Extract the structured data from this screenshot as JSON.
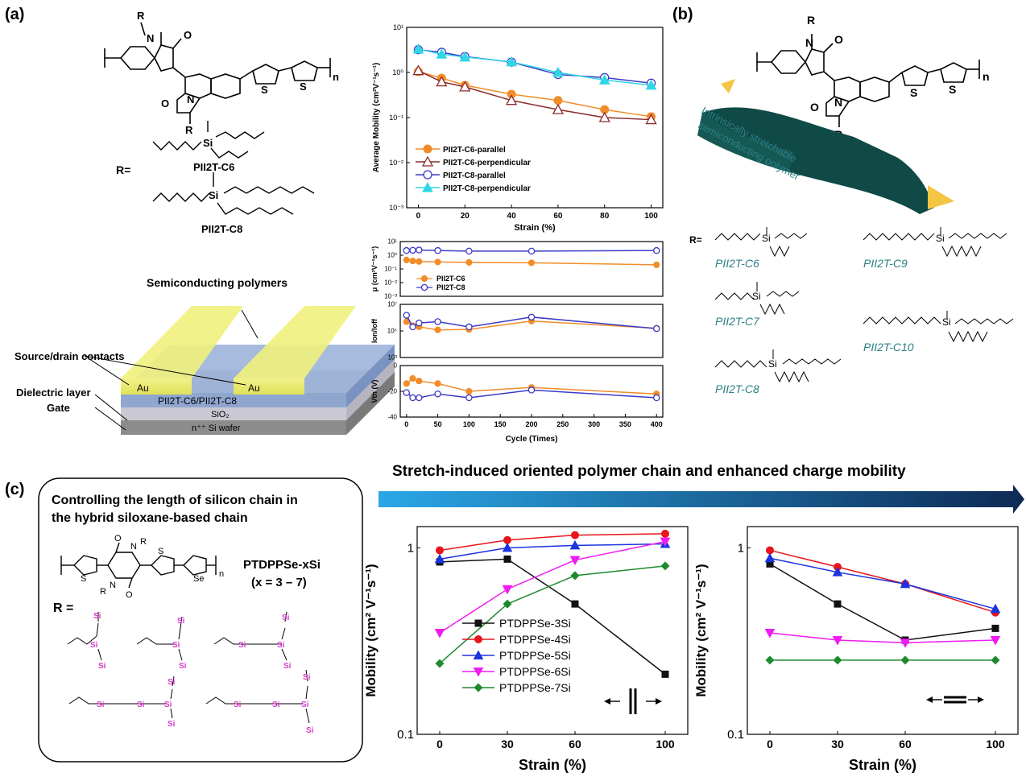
{
  "panels": {
    "a": "(a)",
    "b": "(b)",
    "c": "(c)"
  },
  "panel_a": {
    "chem": {
      "R": "R",
      "O": "O",
      "N": "N",
      "S": "S",
      "n": "n",
      "Si": "Si",
      "R_eq": "R=",
      "name1": "PII2T-C6",
      "name2": "PII2T-C8"
    },
    "device": {
      "semiconducting_label": "Semiconducting polymers",
      "source_drain_label": "Source/drain contacts",
      "dielectric_label": "Dielectric layer",
      "gate_label": "Gate",
      "au": "Au",
      "polymer_layer": "PII2T-C6/PII2T-C8",
      "sio2": "SiO₂",
      "wafer": "n⁺⁺ Si wafer"
    },
    "colors": {
      "wafer": "#8c8c8c",
      "sio2": "#c9c9d3",
      "polymer": "#8fa6cf",
      "au": "#e8e870"
    }
  },
  "panel_b": {
    "chem": {
      "R": "R",
      "O": "O",
      "N": "N",
      "S": "S",
      "n": "n",
      "Si": "Si",
      "R_eq": "R="
    },
    "film_label": "Intrinsically stretchable semiconducting polymer",
    "film_lines": [
      "Intrinsically stretchable",
      "semiconducting polymer"
    ],
    "names": [
      "PII2T-C6",
      "PII2T-C7",
      "PII2T-C8",
      "PII2T-C9",
      "PII2T-C10"
    ],
    "colors": {
      "film": "#0f4a47",
      "name": "#2b7f86",
      "arrow": "#f4c542"
    }
  },
  "panel_c": {
    "banner": "Stretch-induced oriented polymer chain and enhanced charge mobility",
    "box_title_lines": [
      "Controlling the length of silicon chain in",
      "the hybrid siloxane-based chain"
    ],
    "polymer_name": "PTDPPSe-xSi",
    "x_range": "(x = 3 – 7)",
    "R_eq": "R =",
    "chem": {
      "O": "O",
      "N": "N",
      "R": "R",
      "S": "S",
      "Se": "Se",
      "n": "n",
      "Si": "Si"
    },
    "colors": {
      "si": "#d63cc8",
      "banner_start": "#2aa7e6",
      "banner_end": "#0e2a55"
    }
  },
  "chart_data": [
    {
      "id": "a-mobility",
      "type": "line",
      "ylabel": "Average Mobility (cm²V⁻¹s⁻¹)",
      "xlabel": "Strain (%)",
      "yscale": "log",
      "xlim": [
        -5,
        105
      ],
      "ylim": [
        0.001,
        10
      ],
      "xticks": [
        0,
        20,
        40,
        60,
        80,
        100
      ],
      "yticks": [
        0.001,
        0.01,
        0.1,
        1,
        10
      ],
      "ytick_labels": [
        "10⁻³",
        "10⁻²",
        "10⁻¹",
        "10⁰",
        "10¹"
      ],
      "x": [
        0,
        10,
        20,
        40,
        60,
        80,
        100
      ],
      "series": [
        {
          "name": "PII2T-C6-parallel",
          "color": "#f28c28",
          "marker": "circle-filled",
          "values": [
            1.05,
            0.75,
            0.52,
            0.33,
            0.24,
            0.15,
            0.105
          ]
        },
        {
          "name": "PII2T-C6-perpendicular",
          "color": "#8b2a2a",
          "marker": "triangle-open",
          "values": [
            1.1,
            0.62,
            0.48,
            0.24,
            0.15,
            0.1,
            0.09
          ]
        },
        {
          "name": "PII2T-C8-parallel",
          "color": "#3a3ac9",
          "marker": "circle-open",
          "values": [
            3.2,
            2.8,
            2.25,
            1.7,
            0.9,
            0.77,
            0.58
          ]
        },
        {
          "name": "PII2T-C8-perpendicular",
          "color": "#2fd6e6",
          "marker": "triangle-filled",
          "values": [
            3.3,
            2.55,
            2.2,
            1.72,
            1.0,
            0.68,
            0.52
          ]
        }
      ]
    },
    {
      "id": "a-cycle-mu",
      "type": "line",
      "ylabel": "μ (cm²V⁻¹s⁻¹)",
      "yscale": "log",
      "xlim": [
        -10,
        410
      ],
      "ylim": [
        0.001,
        10
      ],
      "yticks": [
        0.001,
        0.01,
        0.1,
        1,
        10
      ],
      "ytick_labels": [
        "10⁻³",
        "10⁻²",
        "10⁻¹",
        "10⁰",
        "10¹"
      ],
      "x": [
        0,
        10,
        20,
        50,
        100,
        200,
        400
      ],
      "series": [
        {
          "name": "PII2T-C6",
          "color": "#f28c28",
          "marker": "circle-filled",
          "values": [
            0.45,
            0.38,
            0.35,
            0.32,
            0.3,
            0.28,
            0.2
          ]
        },
        {
          "name": "PII2T-C8",
          "color": "#3a3ac9",
          "marker": "circle-open",
          "values": [
            2.2,
            2.3,
            2.4,
            2.2,
            2.0,
            2.0,
            2.2
          ]
        }
      ]
    },
    {
      "id": "a-cycle-onoff",
      "type": "line",
      "ylabel": "Ion/Ioff",
      "yscale": "log",
      "xlim": [
        -10,
        410
      ],
      "ylim": [
        1000,
        10000000
      ],
      "yticks": [
        1000,
        100000,
        10000000
      ],
      "ytick_labels": [
        "10³",
        "10⁵",
        "10⁷"
      ],
      "x": [
        0,
        10,
        20,
        50,
        100,
        200,
        400
      ],
      "series": [
        {
          "name": "PII2T-C6",
          "color": "#f28c28",
          "marker": "circle-filled",
          "values": [
            500000,
            250000,
            200000,
            120000,
            130000,
            550000,
            160000
          ]
        },
        {
          "name": "PII2T-C8",
          "color": "#3a3ac9",
          "marker": "circle-open",
          "values": [
            1500000,
            200000,
            400000,
            500000,
            200000,
            1100000,
            150000
          ]
        }
      ]
    },
    {
      "id": "a-cycle-vth",
      "type": "line",
      "ylabel": "Vth (V)",
      "xlabel": "Cycle (Times)",
      "xlim": [
        -10,
        410
      ],
      "ylim": [
        -40,
        0
      ],
      "xticks": [
        0,
        50,
        100,
        150,
        200,
        250,
        300,
        350,
        400
      ],
      "yticks": [
        -40,
        -20,
        0
      ],
      "x": [
        0,
        10,
        20,
        50,
        100,
        200,
        400
      ],
      "series": [
        {
          "name": "PII2T-C6",
          "color": "#f28c28",
          "marker": "circle-filled",
          "values": [
            -14,
            -10,
            -12,
            -14,
            -20,
            -17,
            -22
          ]
        },
        {
          "name": "PII2T-C8",
          "color": "#3a3ac9",
          "marker": "circle-open",
          "values": [
            -21,
            -25,
            -25,
            -22,
            -25,
            -19,
            -25
          ]
        }
      ]
    },
    {
      "id": "c-parallel",
      "type": "line",
      "ylabel": "Mobility (cm² V⁻¹s⁻¹)",
      "xlabel": "Strain (%)",
      "yscale": "log",
      "xlim": [
        -10,
        110
      ],
      "ylim": [
        0.1,
        1.3
      ],
      "xticks": [
        0,
        30,
        60,
        100
      ],
      "yticks": [
        0.1,
        1
      ],
      "ytick_labels": [
        "0.1",
        "1"
      ],
      "orientation_symbol": "parallel",
      "x": [
        0,
        30,
        60,
        100
      ],
      "series": [
        {
          "name": "PTDPPSe-3Si",
          "color": "#111111",
          "marker": "square",
          "values": [
            0.84,
            0.87,
            0.5,
            0.21
          ]
        },
        {
          "name": "PTDPPSe-4Si",
          "color": "#e8151b",
          "marker": "circle",
          "values": [
            0.97,
            1.1,
            1.17,
            1.19
          ]
        },
        {
          "name": "PTDPPSe-5Si",
          "color": "#1b33e0",
          "marker": "triangle-up",
          "values": [
            0.87,
            1.0,
            1.03,
            1.05
          ]
        },
        {
          "name": "PTDPPSe-6Si",
          "color": "#f01cf0",
          "marker": "triangle-down",
          "values": [
            0.35,
            0.6,
            0.86,
            1.08
          ]
        },
        {
          "name": "PTDPPSe-7Si",
          "color": "#1e8a2e",
          "marker": "diamond",
          "values": [
            0.24,
            0.5,
            0.71,
            0.8
          ]
        }
      ]
    },
    {
      "id": "c-perpendicular",
      "type": "line",
      "ylabel": "Mobility (cm² V⁻¹s⁻¹)",
      "xlabel": "Strain (%)",
      "yscale": "log",
      "xlim": [
        -10,
        110
      ],
      "ylim": [
        0.1,
        1.3
      ],
      "xticks": [
        0,
        30,
        60,
        100
      ],
      "yticks": [
        0.1,
        1
      ],
      "ytick_labels": [
        "0.1",
        "1"
      ],
      "orientation_symbol": "perpendicular",
      "x": [
        0,
        30,
        60,
        100
      ],
      "series": [
        {
          "name": "PTDPPSe-3Si",
          "color": "#111111",
          "marker": "square",
          "values": [
            0.82,
            0.5,
            0.32,
            0.37
          ]
        },
        {
          "name": "PTDPPSe-4Si",
          "color": "#e8151b",
          "marker": "circle",
          "values": [
            0.97,
            0.79,
            0.64,
            0.45
          ]
        },
        {
          "name": "PTDPPSe-5Si",
          "color": "#1b33e0",
          "marker": "triangle-up",
          "values": [
            0.88,
            0.74,
            0.64,
            0.47
          ]
        },
        {
          "name": "PTDPPSe-6Si",
          "color": "#f01cf0",
          "marker": "triangle-down",
          "values": [
            0.35,
            0.32,
            0.31,
            0.32
          ]
        },
        {
          "name": "PTDPPSe-7Si",
          "color": "#1e8a2e",
          "marker": "diamond",
          "values": [
            0.25,
            0.25,
            0.25,
            0.25
          ]
        }
      ]
    }
  ]
}
